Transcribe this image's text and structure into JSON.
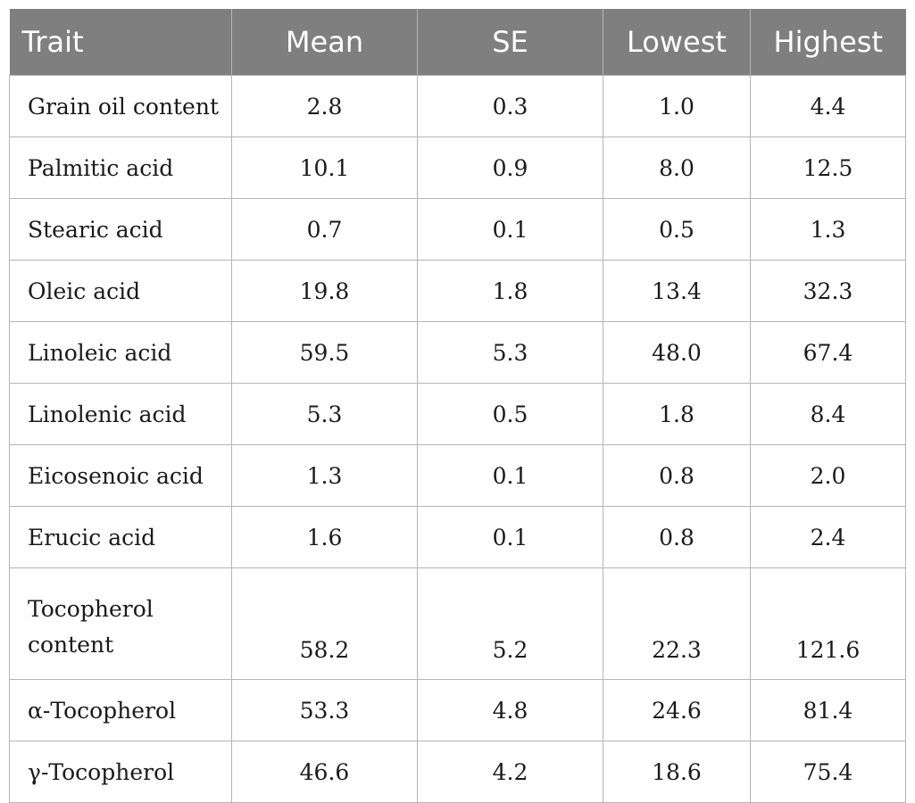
{
  "table": {
    "headers": [
      "Trait",
      "Mean",
      "SE",
      "Lowest",
      "Highest"
    ],
    "rows": [
      {
        "trait": "Grain oil content",
        "mean": "2.8",
        "se": "0.3",
        "lowest": "1.0",
        "highest": "4.4"
      },
      {
        "trait": "Palmitic acid",
        "mean": "10.1",
        "se": "0.9",
        "lowest": "8.0",
        "highest": "12.5"
      },
      {
        "trait": "Stearic acid",
        "mean": "0.7",
        "se": "0.1",
        "lowest": "0.5",
        "highest": "1.3"
      },
      {
        "trait": "Oleic acid",
        "mean": "19.8",
        "se": "1.8",
        "lowest": "13.4",
        "highest": "32.3"
      },
      {
        "trait": "Linoleic acid",
        "mean": "59.5",
        "se": "5.3",
        "lowest": "48.0",
        "highest": "67.4"
      },
      {
        "trait": "Linolenic acid",
        "mean": "5.3",
        "se": "0.5",
        "lowest": "1.8",
        "highest": "8.4"
      },
      {
        "trait": "Eicosenoic acid",
        "mean": "1.3",
        "se": "0.1",
        "lowest": "0.8",
        "highest": "2.0"
      },
      {
        "trait": "Erucic acid",
        "mean": "1.6",
        "se": "0.1",
        "lowest": "0.8",
        "highest": "2.4"
      },
      {
        "trait": "Tocopherol content",
        "mean": "58.2",
        "se": "5.2",
        "lowest": "22.3",
        "highest": "121.6"
      },
      {
        "trait": "α-Tocopherol",
        "mean": "53.3",
        "se": "4.8",
        "lowest": "24.6",
        "highest": "81.4"
      },
      {
        "trait": "γ-Tocopherol",
        "mean": "46.6",
        "se": "4.2",
        "lowest": "18.6",
        "highest": "75.4"
      }
    ]
  },
  "colors": {
    "header_background": "#7f7f7f",
    "header_text": "#ffffff",
    "grid_lines": "#b5b5b5",
    "body_text": "#1a1a1a"
  }
}
